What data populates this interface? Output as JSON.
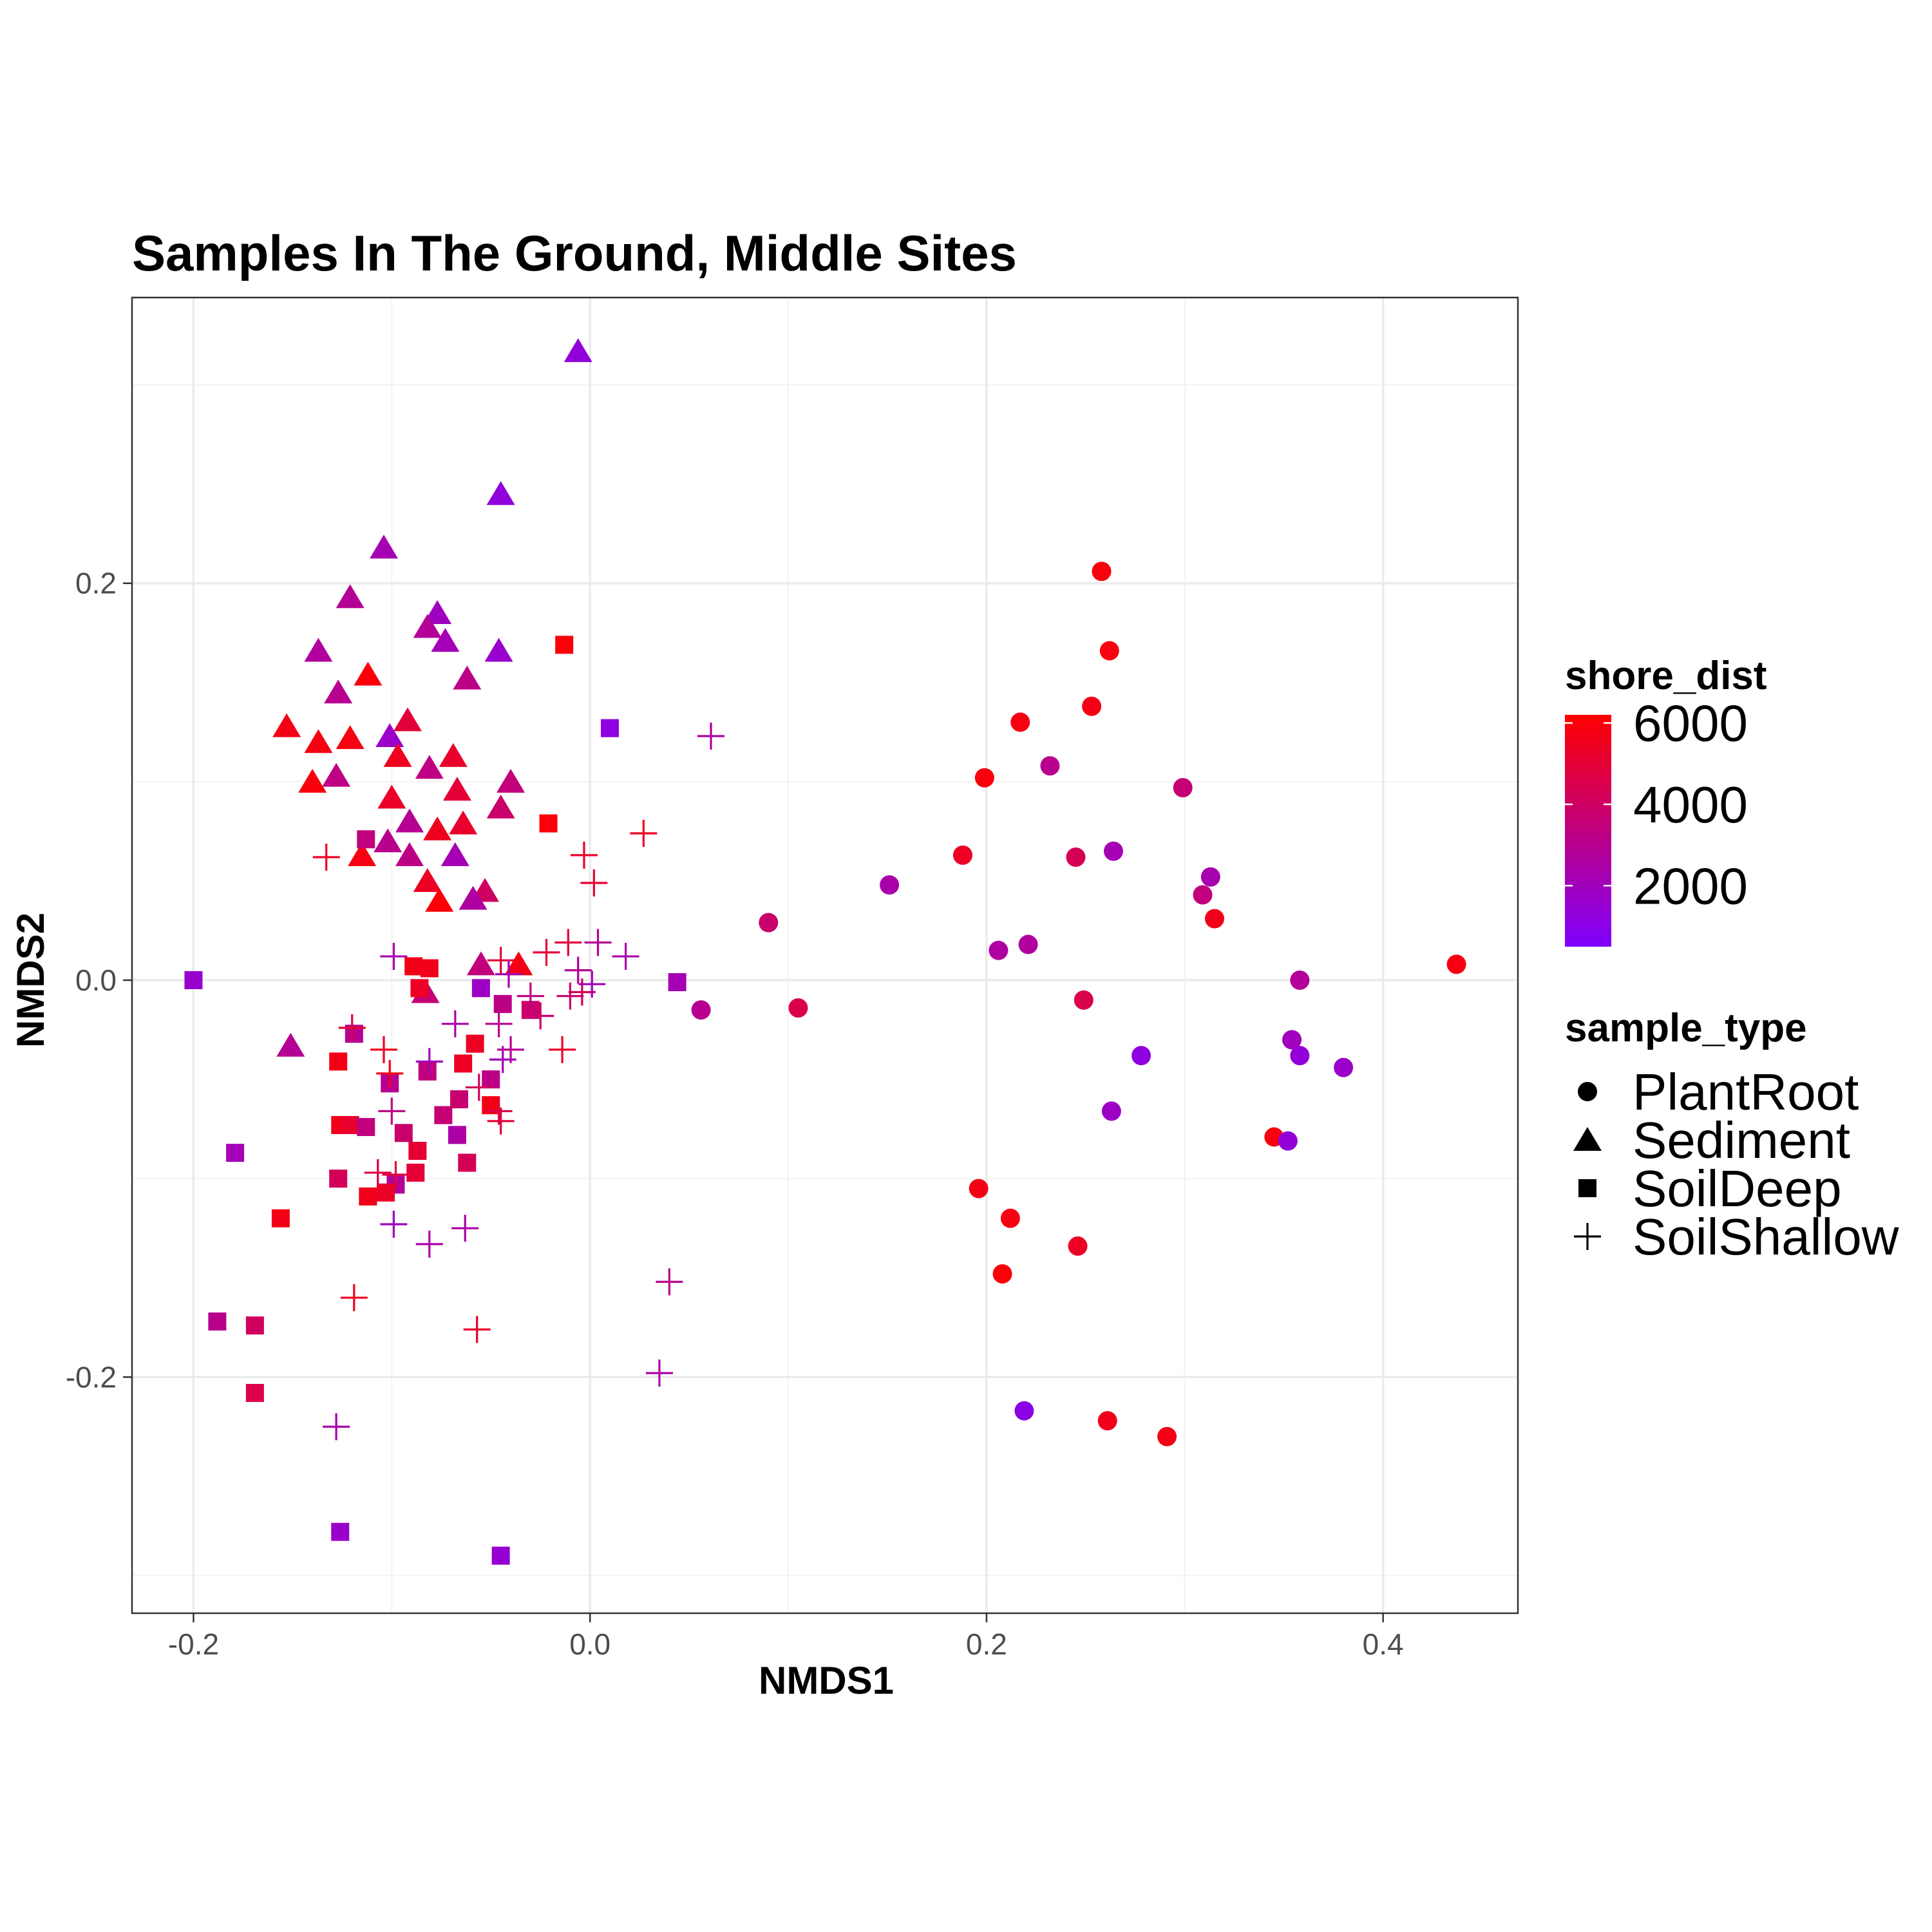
{
  "chart_data": {
    "type": "scatter",
    "title": "Samples In The Ground, Middle Sites",
    "xlabel": "NMDS1",
    "ylabel": "NMDS2",
    "xlim": [
      -0.231,
      0.468
    ],
    "ylim": [
      -0.319,
      0.344
    ],
    "x_ticks": [
      -0.2,
      0.0,
      0.2,
      0.4
    ],
    "y_ticks": [
      -0.2,
      0.0,
      0.2
    ],
    "x_tick_labels": [
      "-0.2",
      "0.0",
      "0.2",
      "0.4"
    ],
    "y_tick_labels": [
      "-0.2",
      "0.0",
      "0.2"
    ],
    "grid": true,
    "color_legend": {
      "title": "shore_dist",
      "low_color": "#7f00ff",
      "high_color": "#ff0000",
      "range": [
        500,
        6200
      ],
      "ticks": [
        2000,
        4000,
        6000
      ],
      "tick_labels": [
        "2000",
        "4000",
        "6000"
      ],
      "placement": "right"
    },
    "shape_legend": {
      "title": "sample_type",
      "placement": "right",
      "entries": [
        {
          "label": "PlantRoot",
          "shape": "circle"
        },
        {
          "label": "Sediment",
          "shape": "triangle"
        },
        {
          "label": "SoilDeep",
          "shape": "square"
        },
        {
          "label": "SoilShallow",
          "shape": "plus"
        }
      ]
    },
    "series": [
      {
        "name": "PlantRoot",
        "shape": "circle",
        "points": [
          [
            0.258,
            0.206,
            5900
          ],
          [
            0.262,
            0.166,
            5900
          ],
          [
            0.253,
            0.138,
            5700
          ],
          [
            0.217,
            0.13,
            5800
          ],
          [
            0.199,
            0.102,
            5900
          ],
          [
            0.232,
            0.108,
            3000
          ],
          [
            0.299,
            0.097,
            3600
          ],
          [
            0.188,
            0.063,
            5400
          ],
          [
            0.245,
            0.062,
            4300
          ],
          [
            0.264,
            0.065,
            2200
          ],
          [
            0.151,
            0.048,
            2400
          ],
          [
            0.313,
            0.052,
            2300
          ],
          [
            0.309,
            0.043,
            3400
          ],
          [
            0.315,
            0.031,
            5600
          ],
          [
            0.09,
            0.029,
            3800
          ],
          [
            0.206,
            0.015,
            2600
          ],
          [
            0.221,
            0.018,
            2700
          ],
          [
            0.437,
            0.008,
            5800
          ],
          [
            0.358,
            0.0,
            2800
          ],
          [
            0.249,
            -0.01,
            4500
          ],
          [
            0.105,
            -0.014,
            4500
          ],
          [
            0.056,
            -0.015,
            3000
          ],
          [
            0.354,
            -0.03,
            2000
          ],
          [
            0.358,
            -0.038,
            1400
          ],
          [
            0.38,
            -0.044,
            1700
          ],
          [
            0.278,
            -0.038,
            1200
          ],
          [
            0.263,
            -0.066,
            1800
          ],
          [
            0.345,
            -0.079,
            5900
          ],
          [
            0.352,
            -0.081,
            1400
          ],
          [
            0.196,
            -0.105,
            5700
          ],
          [
            0.212,
            -0.12,
            5800
          ],
          [
            0.246,
            -0.134,
            5400
          ],
          [
            0.208,
            -0.148,
            6000
          ],
          [
            0.219,
            -0.217,
            1100
          ],
          [
            0.261,
            -0.222,
            5600
          ],
          [
            0.291,
            -0.23,
            5700
          ]
        ]
      },
      {
        "name": "Sediment",
        "shape": "triangle",
        "points": [
          [
            -0.006,
            0.317,
            1300
          ],
          [
            -0.045,
            0.245,
            1300
          ],
          [
            -0.104,
            0.218,
            2200
          ],
          [
            -0.121,
            0.193,
            2900
          ],
          [
            -0.077,
            0.185,
            1900
          ],
          [
            -0.082,
            0.178,
            2800
          ],
          [
            -0.073,
            0.171,
            2100
          ],
          [
            -0.137,
            0.166,
            2700
          ],
          [
            -0.046,
            0.166,
            1600
          ],
          [
            -0.112,
            0.154,
            6000
          ],
          [
            -0.062,
            0.152,
            3200
          ],
          [
            -0.127,
            0.145,
            3000
          ],
          [
            -0.153,
            0.128,
            5700
          ],
          [
            -0.092,
            0.131,
            4900
          ],
          [
            -0.137,
            0.12,
            5800
          ],
          [
            -0.121,
            0.122,
            5800
          ],
          [
            -0.101,
            0.123,
            1700
          ],
          [
            -0.097,
            0.113,
            5500
          ],
          [
            -0.069,
            0.113,
            5200
          ],
          [
            -0.081,
            0.107,
            3300
          ],
          [
            -0.128,
            0.103,
            3300
          ],
          [
            -0.14,
            0.1,
            5900
          ],
          [
            -0.04,
            0.1,
            3500
          ],
          [
            -0.067,
            0.096,
            5000
          ],
          [
            -0.1,
            0.092,
            5300
          ],
          [
            -0.045,
            0.087,
            3800
          ],
          [
            -0.091,
            0.08,
            2900
          ],
          [
            -0.064,
            0.079,
            5200
          ],
          [
            -0.077,
            0.076,
            5500
          ],
          [
            -0.102,
            0.07,
            3100
          ],
          [
            -0.115,
            0.063,
            5800
          ],
          [
            -0.091,
            0.063,
            3200
          ],
          [
            -0.068,
            0.063,
            2200
          ],
          [
            -0.082,
            0.05,
            5400
          ],
          [
            -0.053,
            0.045,
            4000
          ],
          [
            -0.059,
            0.041,
            2600
          ],
          [
            -0.076,
            0.04,
            6000
          ],
          [
            -0.055,
            0.008,
            3400
          ],
          [
            -0.036,
            0.008,
            5700
          ],
          [
            -0.083,
            -0.006,
            3600
          ],
          [
            -0.151,
            -0.033,
            2900
          ]
        ]
      },
      {
        "name": "SoilDeep",
        "shape": "square",
        "points": [
          [
            -0.013,
            0.169,
            6000
          ],
          [
            0.01,
            0.127,
            1200
          ],
          [
            -0.021,
            0.079,
            6000
          ],
          [
            -0.113,
            0.071,
            3400
          ],
          [
            -0.2,
            0.0,
            1600
          ],
          [
            -0.089,
            0.007,
            5700
          ],
          [
            -0.081,
            0.006,
            5600
          ],
          [
            -0.055,
            -0.004,
            1800
          ],
          [
            -0.086,
            -0.004,
            5400
          ],
          [
            -0.044,
            -0.012,
            3200
          ],
          [
            -0.03,
            -0.015,
            3800
          ],
          [
            -0.119,
            -0.027,
            2900
          ],
          [
            -0.058,
            -0.032,
            5400
          ],
          [
            -0.127,
            -0.041,
            5700
          ],
          [
            -0.064,
            -0.042,
            5400
          ],
          [
            -0.082,
            -0.046,
            3400
          ],
          [
            -0.101,
            -0.052,
            3000
          ],
          [
            -0.05,
            -0.05,
            3200
          ],
          [
            -0.066,
            -0.06,
            3700
          ],
          [
            -0.05,
            -0.063,
            5700
          ],
          [
            -0.074,
            -0.068,
            3600
          ],
          [
            -0.126,
            -0.073,
            5600
          ],
          [
            -0.121,
            -0.073,
            5200
          ],
          [
            -0.113,
            -0.074,
            3400
          ],
          [
            -0.094,
            -0.077,
            3800
          ],
          [
            -0.067,
            -0.078,
            2500
          ],
          [
            -0.179,
            -0.087,
            2100
          ],
          [
            -0.087,
            -0.086,
            5100
          ],
          [
            -0.062,
            -0.092,
            4300
          ],
          [
            -0.127,
            -0.1,
            4200
          ],
          [
            -0.088,
            -0.097,
            5000
          ],
          [
            -0.098,
            -0.103,
            2800
          ],
          [
            -0.112,
            -0.109,
            5600
          ],
          [
            -0.103,
            -0.107,
            5300
          ],
          [
            -0.156,
            -0.12,
            5700
          ],
          [
            -0.188,
            -0.172,
            3100
          ],
          [
            -0.169,
            -0.174,
            4100
          ],
          [
            -0.169,
            -0.208,
            4600
          ],
          [
            -0.126,
            -0.278,
            1700
          ],
          [
            -0.045,
            -0.29,
            1500
          ],
          [
            0.044,
            -0.001,
            2200
          ]
        ]
      },
      {
        "name": "SoilShallow",
        "shape": "plus",
        "points": [
          [
            0.061,
            0.123,
            2600
          ],
          [
            0.027,
            0.074,
            5500
          ],
          [
            -0.003,
            0.063,
            5300
          ],
          [
            0.002,
            0.049,
            5100
          ],
          [
            -0.133,
            0.062,
            5400
          ],
          [
            -0.099,
            0.012,
            2300
          ],
          [
            -0.045,
            0.01,
            5000
          ],
          [
            -0.022,
            0.014,
            5000
          ],
          [
            -0.011,
            0.019,
            4900
          ],
          [
            0.004,
            0.019,
            2900
          ],
          [
            0.018,
            0.012,
            2400
          ],
          [
            -0.006,
            0.005,
            2800
          ],
          [
            -0.004,
            -0.006,
            4300
          ],
          [
            -0.01,
            -0.008,
            3800
          ],
          [
            0.001,
            -0.002,
            2100
          ],
          [
            -0.03,
            -0.008,
            3300
          ],
          [
            -0.041,
            0.003,
            2300
          ],
          [
            -0.025,
            -0.018,
            3700
          ],
          [
            -0.046,
            -0.022,
            3100
          ],
          [
            -0.068,
            -0.022,
            2400
          ],
          [
            -0.12,
            -0.024,
            5000
          ],
          [
            -0.104,
            -0.035,
            5500
          ],
          [
            -0.014,
            -0.035,
            5300
          ],
          [
            -0.04,
            -0.035,
            3000
          ],
          [
            -0.044,
            -0.04,
            2100
          ],
          [
            -0.081,
            -0.041,
            2100
          ],
          [
            -0.101,
            -0.047,
            5700
          ],
          [
            -0.056,
            -0.054,
            4200
          ],
          [
            -0.1,
            -0.066,
            3200
          ],
          [
            -0.045,
            -0.071,
            5000
          ],
          [
            -0.046,
            -0.066,
            4600
          ],
          [
            -0.107,
            -0.097,
            4700
          ],
          [
            -0.098,
            -0.098,
            4900
          ],
          [
            -0.099,
            -0.123,
            1900
          ],
          [
            -0.063,
            -0.125,
            2500
          ],
          [
            -0.081,
            -0.133,
            2500
          ],
          [
            -0.119,
            -0.16,
            5500
          ],
          [
            0.04,
            -0.152,
            3100
          ],
          [
            -0.057,
            -0.176,
            5200
          ],
          [
            0.035,
            -0.198,
            2500
          ],
          [
            -0.128,
            -0.225,
            2400
          ]
        ]
      }
    ]
  }
}
